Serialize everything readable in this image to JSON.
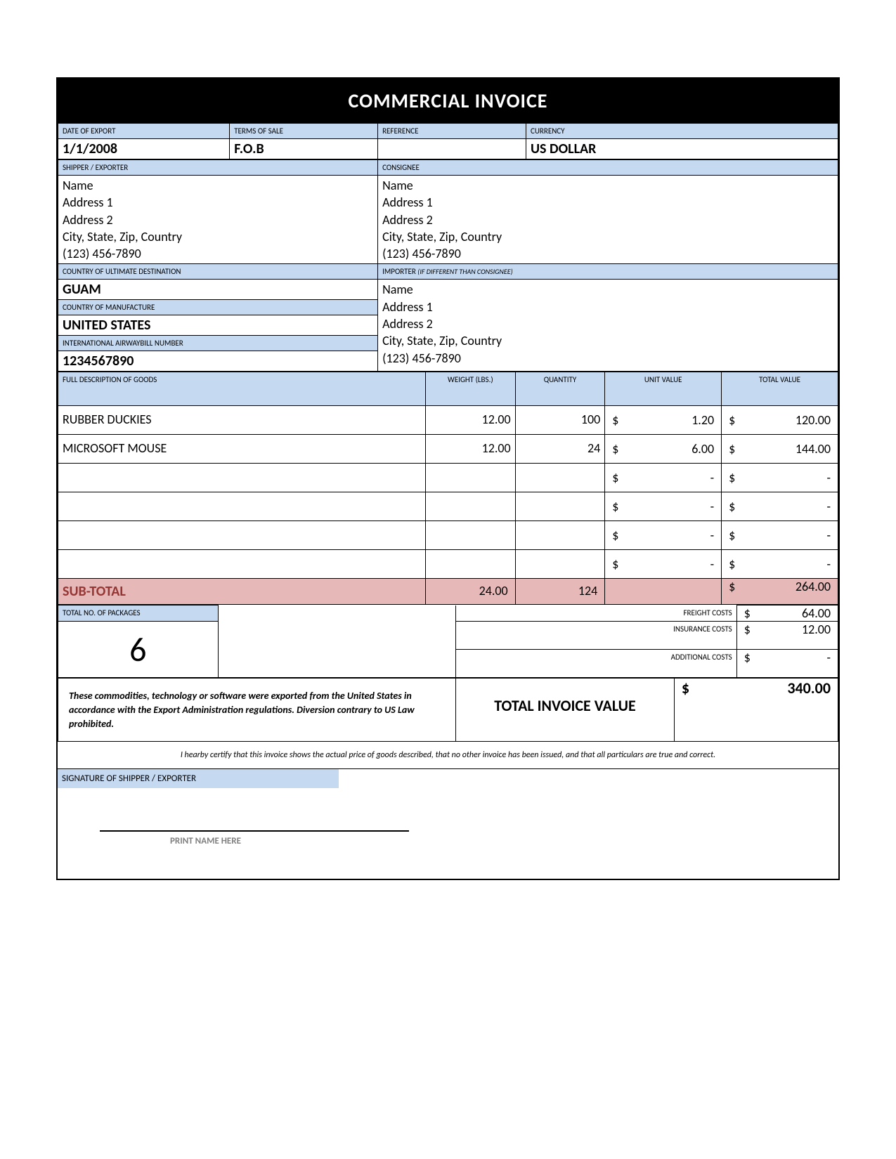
{
  "title": "COMMERCIAL INVOICE",
  "labels": {
    "date_of_export": "DATE OF EXPORT",
    "terms_of_sale": "TERMS OF SALE",
    "reference": "REFERENCE",
    "currency": "CURRENCY",
    "shipper_exporter": "SHIPPER / EXPORTER",
    "consignee": "CONSIGNEE",
    "country_destination": "COUNTRY OF ULTIMATE DESTINATION",
    "importer": "IMPORTER ",
    "importer_sub": "(IF DIFFERENT THAN CONSIGNEE)",
    "country_manufacture": "COUNTRY OF MANUFACTURE",
    "airwaybill": "INTERNATIONAL AIRWAYBILL NUMBER",
    "description_goods": "FULL DESCRIPTION OF GOODS",
    "weight": "WEIGHT (LBS.)",
    "quantity": "QUANTITY",
    "unit_value": "UNIT VALUE",
    "total_value": "TOTAL VALUE",
    "subtotal": "SUB-TOTAL",
    "total_packages": "TOTAL NO. OF PACKAGES",
    "freight_costs": "FREIGHT COSTS",
    "insurance_costs": "INSURANCE COSTS",
    "additional_costs": "ADDITIONAL COSTS",
    "total_invoice": "TOTAL INVOICE VALUE",
    "signature": "SIGNATURE OF SHIPPER / EXPORTER",
    "print_name": "PRINT NAME HERE"
  },
  "header": {
    "date_of_export": "1/1/2008",
    "terms_of_sale": "F.O.B",
    "reference": "",
    "currency": "US DOLLAR"
  },
  "shipper": {
    "name": "Name",
    "address1": "Address 1",
    "address2": "Address 2",
    "city_line": "City, State, Zip, Country",
    "phone": "(123) 456-7890"
  },
  "consignee": {
    "name": "Name",
    "address1": "Address 1",
    "address2": "Address 2",
    "city_line": "City, State, Zip, Country",
    "phone": "(123) 456-7890"
  },
  "importer": {
    "name": "Name",
    "address1": "Address 1",
    "address2": "Address 2",
    "city_line": "City, State, Zip, Country",
    "phone": "(123) 456-7890"
  },
  "left_fields": {
    "country_destination": "GUAM",
    "country_manufacture": "UNITED STATES",
    "airwaybill": "1234567890"
  },
  "goods": {
    "rows": [
      {
        "desc": "RUBBER DUCKIES",
        "weight": "12.00",
        "qty": "100",
        "unit": "1.20",
        "total": "120.00"
      },
      {
        "desc": "MICROSOFT MOUSE",
        "weight": "12.00",
        "qty": "24",
        "unit": "6.00",
        "total": "144.00"
      },
      {
        "desc": "",
        "weight": "",
        "qty": "",
        "unit": "-",
        "total": "-"
      },
      {
        "desc": "",
        "weight": "",
        "qty": "",
        "unit": "-",
        "total": "-"
      },
      {
        "desc": "",
        "weight": "",
        "qty": "",
        "unit": "-",
        "total": "-"
      },
      {
        "desc": "",
        "weight": "",
        "qty": "",
        "unit": "-",
        "total": "-"
      }
    ],
    "subtotal_weight": "24.00",
    "subtotal_qty": "124",
    "subtotal_value": "264.00"
  },
  "packages": "6",
  "costs": {
    "freight": "64.00",
    "insurance": "12.00",
    "additional": "-"
  },
  "total_invoice_value": "340.00",
  "disclaimer": "These commodities, technology or software were exported from the United States in accordance with the Export Administration regulations.  Diversion contrary to US Law prohibited.",
  "certification": "I hearby certify that this invoice shows the actual price of goods described, that no other invoice has been issued, and that all particulars are true and correct.",
  "currency_symbol": "$",
  "colors": {
    "header_blue": "#c5d9f1",
    "subtotal_red": "#e6b8b7",
    "title_bg": "#000000",
    "title_fg": "#ffffff"
  }
}
